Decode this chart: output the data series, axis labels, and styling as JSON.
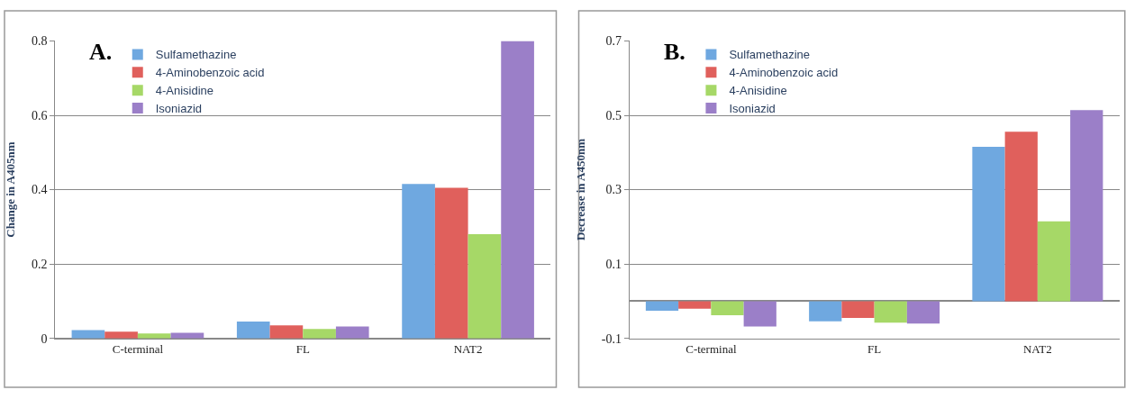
{
  "chart_data": [
    {
      "type": "bar",
      "ylabel": "Change in A405nm",
      "annotations": [
        "A."
      ],
      "categories": [
        "C-terminal",
        "FL",
        "NAT2"
      ],
      "ylim": [
        0,
        0.8
      ],
      "yticks": [
        {
          "value": 0,
          "label": "0"
        },
        0.2,
        0.4,
        0.6,
        0.8
      ],
      "grid": "y",
      "legend": "top left",
      "series": [
        {
          "name": "Sulfamethazine",
          "color": "#6fa8e0",
          "values": [
            0.022,
            0.045,
            0.415
          ]
        },
        {
          "name": "4-Aminobenzoic acid",
          "color": "#e0605c",
          "values": [
            0.018,
            0.035,
            0.405
          ]
        },
        {
          "name": "4-Anisidine",
          "color": "#a6d867",
          "values": [
            0.013,
            0.025,
            0.28
          ]
        },
        {
          "name": "Isoniazid",
          "color": "#9b7fc8",
          "values": [
            0.015,
            0.032,
            0.8
          ]
        }
      ]
    },
    {
      "type": "bar",
      "ylabel": "Decrease in A450nm",
      "annotations": [
        "B."
      ],
      "categories": [
        "C-terminal",
        "FL",
        "NAT2"
      ],
      "ylim": [
        -0.1,
        0.7
      ],
      "yticks": [
        -0.1,
        0.1,
        0.3,
        0.5,
        0.7
      ],
      "grid": "y",
      "legend": "top left",
      "series": [
        {
          "name": "Sulfamethazine",
          "color": "#6fa8e0",
          "values": [
            -0.026,
            -0.054,
            0.415
          ]
        },
        {
          "name": "4-Aminobenzoic acid",
          "color": "#e0605c",
          "values": [
            -0.02,
            -0.045,
            0.456
          ]
        },
        {
          "name": "4-Anisidine",
          "color": "#a6d867",
          "values": [
            -0.038,
            -0.058,
            0.215
          ]
        },
        {
          "name": "Isoniazid",
          "color": "#9b7fc8",
          "values": [
            -0.068,
            -0.06,
            0.514
          ]
        }
      ]
    }
  ]
}
